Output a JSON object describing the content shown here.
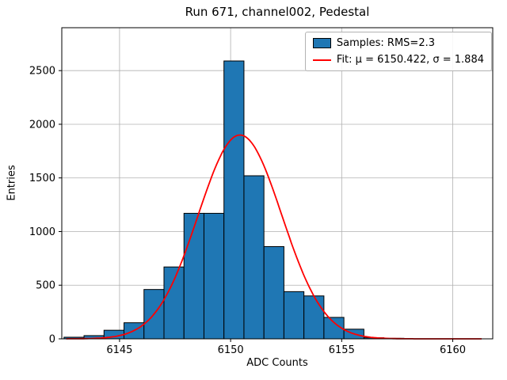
{
  "figure": {
    "title": "Run 671, channel002, Pedestal",
    "xlabel": "ADC Counts",
    "ylabel": "Entries"
  },
  "legend": {
    "entries": [
      {
        "type": "patch",
        "color": "#1f77b4",
        "label": "Samples: RMS=2.3"
      },
      {
        "type": "line",
        "color": "#ff0000",
        "label": "Fit: μ = 6150.422, σ = 1.884"
      }
    ]
  },
  "chart_data": {
    "type": "bar",
    "title": "Run 671, channel002, Pedestal",
    "xlabel": "ADC Counts",
    "ylabel": "Entries",
    "histogram": {
      "bin_start": 6142.5,
      "bin_width": 0.9,
      "counts": [
        15,
        30,
        80,
        150,
        460,
        670,
        1170,
        1170,
        2590,
        1520,
        860,
        440,
        400,
        200,
        90,
        10,
        5
      ]
    },
    "fit": {
      "mu": 6150.422,
      "sigma": 1.884,
      "amplitude": 1900,
      "x_range": [
        6142.6,
        6161.3
      ]
    },
    "xlim": [
      6142.4,
      6161.8
    ],
    "ylim": [
      0,
      2900
    ],
    "xticks": [
      6145,
      6150,
      6155,
      6160
    ],
    "yticks": [
      0,
      500,
      1000,
      1500,
      2000,
      2500
    ],
    "grid": true,
    "legend_position": "upper right",
    "colors": {
      "bar_fill": "#1f77b4",
      "bar_edge": "#000000",
      "fit_line": "#ff0000",
      "grid": "#b0b0b0",
      "axes": "#000000"
    }
  }
}
